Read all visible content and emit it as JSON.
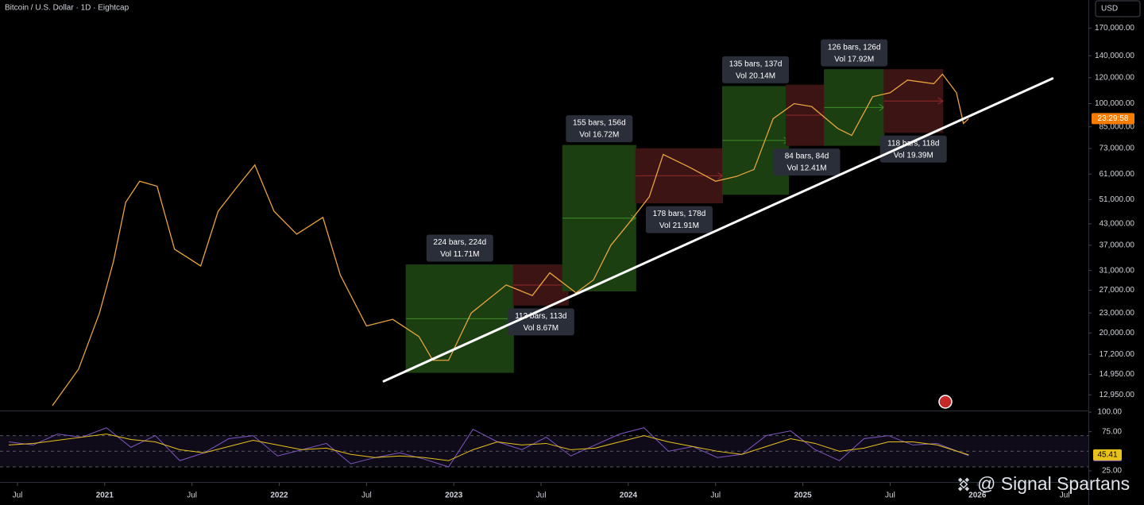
{
  "chart_data": [
    {
      "type": "line",
      "title": "Bitcoin / U.S. Dollar · 1D · Eightcap",
      "currency": "USD",
      "countdown": "23:29:58",
      "watermark": "@ Signal Spartans",
      "log_scale": true,
      "grid": false,
      "color": "#e8a33d",
      "x": [
        2020.7,
        2020.85,
        2020.97,
        2021.05,
        2021.12,
        2021.2,
        2021.3,
        2021.4,
        2021.55,
        2021.65,
        2021.75,
        2021.86,
        2021.97,
        2022.1,
        2022.25,
        2022.35,
        2022.5,
        2022.65,
        2022.8,
        2022.88,
        2022.97,
        2023.1,
        2023.3,
        2023.45,
        2023.55,
        2023.7,
        2023.8,
        2023.9,
        2024.0,
        2024.12,
        2024.2,
        2024.35,
        2024.5,
        2024.62,
        2024.72,
        2024.83,
        2024.95,
        2025.05,
        2025.2,
        2025.28,
        2025.4,
        2025.5,
        2025.6,
        2025.75,
        2025.8,
        2025.88,
        2025.92,
        2025.95
      ],
      "values": [
        12000,
        15500,
        23000,
        33000,
        50000,
        58000,
        56000,
        36000,
        32000,
        47000,
        55000,
        65000,
        47000,
        40000,
        45000,
        30000,
        21000,
        22000,
        19500,
        16500,
        16500,
        23000,
        28000,
        26000,
        30500,
        26500,
        29000,
        37000,
        43000,
        52000,
        70000,
        64000,
        58000,
        60000,
        63000,
        90000,
        100000,
        98000,
        84000,
        80000,
        105000,
        108000,
        118000,
        115000,
        123000,
        108000,
        87000,
        90000
      ],
      "xlim": [
        2020.4,
        2026.636
      ],
      "xticks": [
        {
          "value": 2020.5,
          "label": "Jul"
        },
        2021,
        {
          "value": 2021.5,
          "label": "Jul"
        },
        2022,
        {
          "value": 2022.5,
          "label": "Jul"
        },
        2023,
        {
          "value": 2023.5,
          "label": "Jul"
        },
        2024,
        {
          "value": 2024.5,
          "label": "Jul"
        },
        2025,
        {
          "value": 2025.5,
          "label": "Jul"
        },
        2026,
        {
          "value": 2026.5,
          "label": "Jul"
        }
      ],
      "ylim": [
        11600,
        207000
      ],
      "yticks": [
        {
          "value": 170000,
          "label": "170,000.00"
        },
        {
          "value": 140000,
          "label": "140,000.00"
        },
        {
          "value": 120000,
          "label": "120,000.00"
        },
        {
          "value": 100000,
          "label": "100,000.00"
        },
        {
          "value": 85000,
          "label": "85,000.00"
        },
        {
          "value": 73000,
          "label": "73,000.00"
        },
        {
          "value": 61000,
          "label": "61,000.00"
        },
        {
          "value": 51000,
          "label": "51,000.00"
        },
        {
          "value": 43000,
          "label": "43,000.00"
        },
        {
          "value": 37000,
          "label": "37,000.00"
        },
        {
          "value": 31000,
          "label": "31,000.00"
        },
        {
          "value": 27000,
          "label": "27,000.00"
        },
        {
          "value": 23000,
          "label": "23,000.00"
        },
        {
          "value": 20000,
          "label": "20,000.00"
        },
        {
          "value": 17200,
          "label": "17,200.00"
        },
        {
          "value": 14950,
          "label": "14,950.00"
        },
        {
          "value": 12950,
          "label": "12,950.00"
        }
      ],
      "measures": [
        {
          "x": [
            2022.727,
            2023.342
          ],
          "y": [
            15150,
            32250
          ],
          "color": "#1c3f12",
          "label_side": "top",
          "labels": [
            "224 bars, 224d",
            "Vol 11.71M"
          ]
        },
        {
          "x": [
            2023.342,
            2023.656
          ],
          "y": [
            24300,
            32250
          ],
          "color": "#3d1414",
          "label_side": "bottom",
          "labels": [
            "113 bars, 113d",
            "Vol 8.67M"
          ]
        },
        {
          "x": [
            2023.624,
            2024.043
          ],
          "y": [
            26850,
            74600
          ],
          "color": "#1c3f12",
          "label_side": "top",
          "labels": [
            "155 bars, 156d",
            "Vol 16.72M"
          ]
        },
        {
          "x": [
            2024.043,
            2024.54
          ],
          "y": [
            49800,
            72900
          ],
          "color": "#3d1414",
          "label_side": "bottom",
          "labels": [
            "178 bars, 178d",
            "Vol 21.91M"
          ]
        },
        {
          "x": [
            2024.54,
            2024.918
          ],
          "y": [
            52900,
            112800
          ],
          "color": "#1c3f12",
          "label_side": "top",
          "labels": [
            "135 bars, 137d",
            "Vol 20.14M"
          ]
        },
        {
          "x": [
            2024.904,
            2025.141
          ],
          "y": [
            74600,
            113900
          ],
          "color": "#3d1414",
          "label_side": "bottom",
          "labels": [
            "84 bars, 84d",
            "Vol 12.41M"
          ]
        },
        {
          "x": [
            2025.123,
            2025.465
          ],
          "y": [
            74600,
            127000
          ],
          "color": "#1c3f12",
          "label_side": "top",
          "labels": [
            "126 bars, 126d",
            "Vol 17.92M"
          ]
        },
        {
          "x": [
            2025.465,
            2025.802
          ],
          "y": [
            81700,
            127000
          ],
          "color": "#3d1414",
          "label_side": "bottom",
          "labels": [
            "118 bars, 118d",
            "Vol 19.39M"
          ]
        }
      ],
      "trendline": {
        "x": [
          2022.599,
          2026.43
        ],
        "values": [
          14250,
          119300
        ],
        "color": "#ffffff"
      }
    },
    {
      "type": "line",
      "x": [
        2020.45,
        2020.59,
        2020.73,
        2020.87,
        2021.01,
        2021.15,
        2021.29,
        2021.43,
        2021.57,
        2021.71,
        2021.85,
        2021.99,
        2022.13,
        2022.27,
        2022.41,
        2022.55,
        2022.69,
        2022.83,
        2022.97,
        2023.11,
        2023.25,
        2023.39,
        2023.53,
        2023.67,
        2023.81,
        2023.95,
        2024.09,
        2024.23,
        2024.37,
        2024.51,
        2024.65,
        2024.79,
        2024.93,
        2025.07,
        2025.21,
        2025.35,
        2025.49,
        2025.63,
        2025.77,
        2025.95
      ],
      "series": [
        {
          "color": "#7e57c2",
          "values": [
            62,
            58,
            72,
            68,
            80,
            55,
            70,
            38,
            48,
            66,
            70,
            44,
            52,
            60,
            34,
            42,
            48,
            40,
            30,
            78,
            62,
            52,
            68,
            44,
            58,
            72,
            80,
            50,
            56,
            42,
            46,
            70,
            76,
            52,
            38,
            66,
            70,
            58,
            60,
            44.37
          ]
        },
        {
          "color": "#e8c21a",
          "values": [
            58,
            60,
            64,
            68,
            72,
            65,
            62,
            52,
            48,
            56,
            64,
            58,
            52,
            54,
            46,
            42,
            44,
            42,
            38,
            52,
            62,
            58,
            60,
            52,
            54,
            62,
            70,
            62,
            56,
            50,
            46,
            56,
            66,
            60,
            50,
            54,
            62,
            62,
            58,
            45.41
          ]
        }
      ],
      "levels": [
        70,
        50,
        30
      ],
      "ylim": [
        12.8,
        100
      ],
      "yticks": [
        {
          "value": 100,
          "label": "100.00"
        },
        {
          "value": 75,
          "label": "75.00"
        },
        {
          "value": 25,
          "label": "25.00"
        }
      ]
    }
  ]
}
